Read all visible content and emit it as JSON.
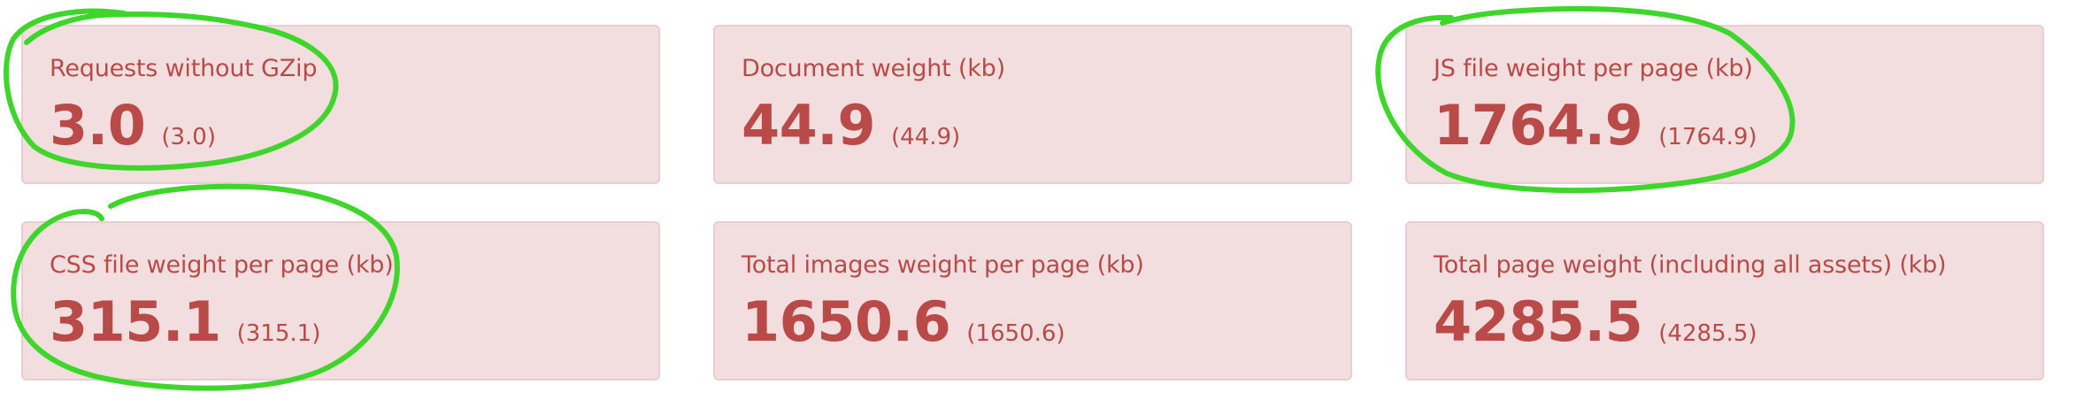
{
  "metrics": [
    {
      "label": "Requests without GZip",
      "value": "3.0",
      "previous": "(3.0)"
    },
    {
      "label": "Document weight (kb)",
      "value": "44.9",
      "previous": "(44.9)"
    },
    {
      "label": "JS file weight per page (kb)",
      "value": "1764.9",
      "previous": "(1764.9)"
    },
    {
      "label": "CSS file weight per page (kb)",
      "value": "315.1",
      "previous": "(315.1)"
    },
    {
      "label": "Total images weight per page (kb)",
      "value": "1650.6",
      "previous": "(1650.6)"
    },
    {
      "label": "Total page weight (including all assets) (kb)",
      "value": "4285.5",
      "previous": "(4285.5)"
    }
  ],
  "colors": {
    "card_background": "#f2dede",
    "card_border": "#ebccd1",
    "text": "#b94a48",
    "annotation_stroke": "#3fd62c"
  }
}
